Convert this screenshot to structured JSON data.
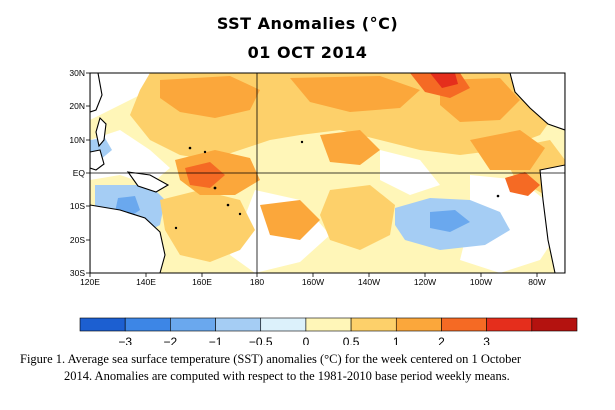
{
  "title": "SST Anomalies (°C)",
  "date": "01 OCT 2014",
  "map": {
    "lat_labels": [
      "30N",
      "20N",
      "10N",
      "EQ",
      "10S",
      "20S",
      "30S"
    ],
    "lon_labels": [
      "120E",
      "140E",
      "160E",
      "180",
      "160W",
      "140W",
      "120W",
      "100W",
      "80W"
    ]
  },
  "colorbar": {
    "colors": [
      "#1c5fd1",
      "#3d86e6",
      "#6aa8ee",
      "#a5cdf4",
      "#dcf1fb",
      "#fff6b8",
      "#fdd06a",
      "#fba73b",
      "#f56a24",
      "#e52e1c",
      "#b4120f"
    ],
    "tick_labels": [
      "−3",
      "−2",
      "−1",
      "−0.5",
      "0",
      "0.5",
      "1",
      "2",
      "3"
    ]
  },
  "caption": {
    "line1": "Figure 1. Average sea surface temperature (SST) anomalies (°C) for the week centered on 1 October",
    "line2": "2014.   Anomalies are computed with respect to the 1981-2010 base period weekly means."
  }
}
